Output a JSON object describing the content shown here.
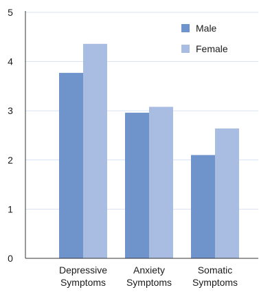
{
  "chart_data": {
    "type": "bar",
    "categories": [
      [
        "Depressive",
        "Symptoms"
      ],
      [
        "Anxiety",
        "Symptoms"
      ],
      [
        "Somatic",
        "Symptoms"
      ]
    ],
    "series": [
      {
        "name": "Male",
        "values": [
          3.77,
          2.96,
          2.1
        ],
        "color": "#6f93cb"
      },
      {
        "name": "Female",
        "values": [
          4.36,
          3.08,
          2.64
        ],
        "color": "#a9bde3"
      }
    ],
    "ylim": [
      0,
      5
    ],
    "yticks": [
      "0",
      "1",
      "2",
      "3",
      "4",
      "5"
    ],
    "grid": true,
    "grid_color": "#d7e1f3",
    "axis_color": "#333333",
    "legend_position": "top-right",
    "title": "",
    "xlabel": "",
    "ylabel": ""
  }
}
